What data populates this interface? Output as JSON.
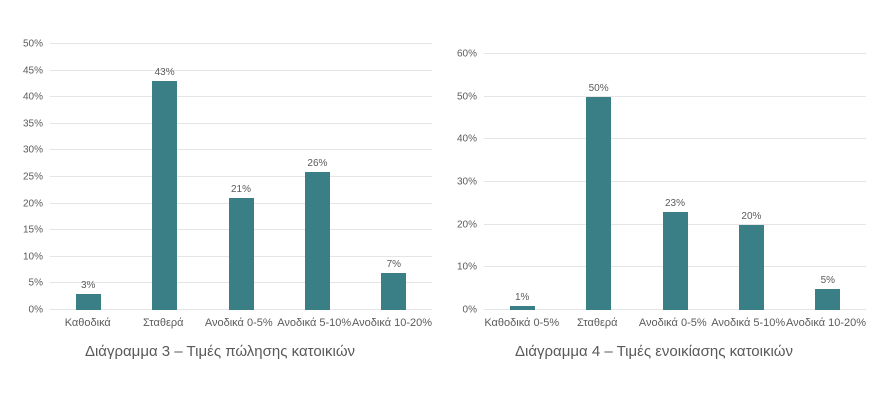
{
  "colors": {
    "bar": "#3A7E86",
    "grid": "#E5E5E5",
    "text": "#5B5B5B"
  },
  "chart_data": [
    {
      "type": "bar",
      "title": "Διάγραμμα 3 – Τιμές πώλησης κατοικιών",
      "categories": [
        "Καθοδικά",
        "Σταθερά",
        "Ανοδικά 0-5%",
        "Ανοδικά 5-10%",
        "Ανοδικά 10-20%"
      ],
      "values": [
        3,
        43,
        21,
        26,
        7
      ],
      "value_labels": [
        "3%",
        "43%",
        "21%",
        "26%",
        "7%"
      ],
      "ylim": [
        0,
        50
      ],
      "ytick_step": 5,
      "ytick_labels": [
        "0%",
        "5%",
        "10%",
        "15%",
        "20%",
        "25%",
        "30%",
        "35%",
        "40%",
        "45%",
        "50%"
      ],
      "xlabel": "",
      "ylabel": "",
      "grid": true,
      "legend": "none",
      "bar_color": "#3A7E86"
    },
    {
      "type": "bar",
      "title": "Διάγραμμα 4 – Τιμές ενοικίασης κατοικιών",
      "categories": [
        "Καθοδικά 0-5%",
        "Σταθερά",
        "Ανοδικά 0-5%",
        "Ανοδικά 5-10%",
        "Ανοδικά 10-20%"
      ],
      "values": [
        1,
        50,
        23,
        20,
        5
      ],
      "value_labels": [
        "1%",
        "50%",
        "23%",
        "20%",
        "5%"
      ],
      "ylim": [
        0,
        60
      ],
      "ytick_step": 10,
      "ytick_labels": [
        "0%",
        "10%",
        "20%",
        "30%",
        "40%",
        "50%",
        "60%"
      ],
      "xlabel": "",
      "ylabel": "",
      "grid": true,
      "legend": "none",
      "bar_color": "#3A7E86"
    }
  ]
}
